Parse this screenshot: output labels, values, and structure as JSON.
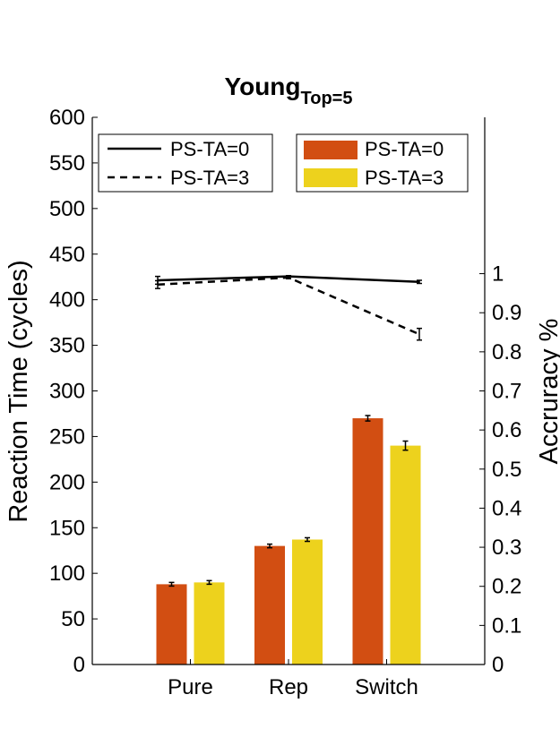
{
  "chart_data": {
    "type": "bar",
    "title": "Young",
    "title_subscript": "Top=5",
    "categories": [
      "Pure",
      "Rep",
      "Switch"
    ],
    "ylabel": "Reaction Time (cycles)",
    "y2label": "Accruracy %",
    "ylim": [
      0,
      600
    ],
    "y2lim": [
      0,
      1.4
    ],
    "yticks": [
      "0",
      "50",
      "100",
      "150",
      "200",
      "250",
      "300",
      "350",
      "400",
      "450",
      "500",
      "550",
      "600"
    ],
    "y2ticks": [
      "0",
      "0.1",
      "0.2",
      "0.3",
      "0.4",
      "0.5",
      "0.6",
      "0.7",
      "0.8",
      "0.9",
      "1"
    ],
    "grid": false,
    "bar_series": [
      {
        "name": "PS-TA=0",
        "color": "#d24e12",
        "values": [
          88,
          130,
          270
        ],
        "errors": [
          2,
          2,
          3
        ]
      },
      {
        "name": "PS-TA=3",
        "color": "#edd21d",
        "values": [
          90,
          137,
          240
        ],
        "errors": [
          2,
          2,
          5
        ]
      }
    ],
    "line_series": [
      {
        "name": "PS-TA=0",
        "style": "solid",
        "color": "#000000",
        "values": [
          0.983,
          0.993,
          0.979
        ],
        "errors": [
          0.01,
          0.002,
          0.004
        ]
      },
      {
        "name": "PS-TA=3",
        "style": "dashed",
        "color": "#000000",
        "values": [
          0.972,
          0.99,
          0.845
        ],
        "errors": [
          0.01,
          0.003,
          0.015
        ]
      }
    ],
    "legend_lines_position": "top-left",
    "legend_bars_position": "top-right"
  }
}
